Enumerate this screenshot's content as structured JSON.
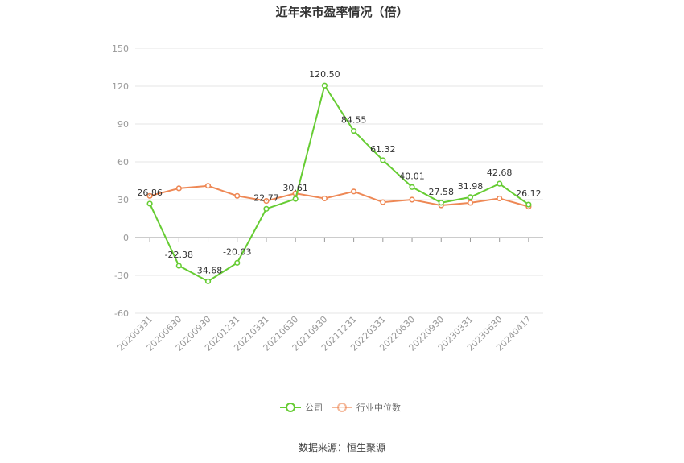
{
  "chart_data": {
    "type": "line",
    "title": "近年来市盈率情况（倍）",
    "categories": [
      "20200331",
      "20200630",
      "20200930",
      "20201231",
      "20210331",
      "20210630",
      "20210930",
      "20211231",
      "20220331",
      "20220630",
      "20220930",
      "20230331",
      "20230630",
      "20240417"
    ],
    "series": [
      {
        "name": "公司",
        "color": "#66cc33",
        "values": [
          26.86,
          -22.38,
          -34.68,
          -20.03,
          22.77,
          30.61,
          120.5,
          84.55,
          61.32,
          40.01,
          27.58,
          31.98,
          42.68,
          26.12
        ],
        "labels": [
          "26.86",
          "-22.38",
          "-34.68",
          "-20.03",
          "22.77",
          "30.61",
          "120.50",
          "84.55",
          "61.32",
          "40.01",
          "27.58",
          "31.98",
          "42.68",
          "26.12"
        ]
      },
      {
        "name": "行业中位数",
        "color": "#ee8855",
        "values": [
          33,
          39,
          41,
          33,
          29,
          35,
          31,
          36.5,
          28,
          30,
          25.5,
          27.5,
          31,
          24.5
        ]
      }
    ],
    "yticks": [
      "150",
      "120",
      "90",
      "60",
      "30",
      "0",
      "-30",
      "-60"
    ],
    "ylim": [
      -60,
      150
    ],
    "source": "数据来源：恒生聚源",
    "grid": true,
    "legend_position": "bottom"
  }
}
